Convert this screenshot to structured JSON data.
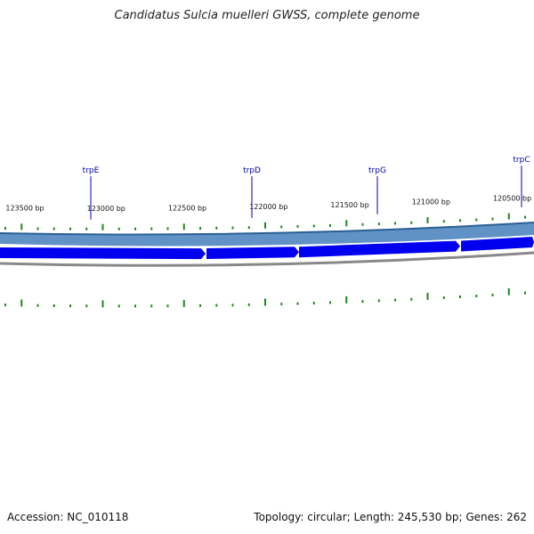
{
  "title": "Candidatus Sulcia muelleri GWSS, complete genome",
  "footer": {
    "accession": "Accession: NC_010118",
    "summary": "Topology: circular; Length: 245,530 bp; Genes: 262"
  },
  "colors": {
    "forward_track": "#4f86c0",
    "gene_arrow": "#0000ee",
    "backbone": "#888888",
    "tick": "#1a8a1a",
    "label": "#0000aa"
  },
  "scale_labels": [
    {
      "bp": 123500,
      "text": "123500 bp"
    },
    {
      "bp": 123000,
      "text": "123000 bp"
    },
    {
      "bp": 122500,
      "text": "122500 bp"
    },
    {
      "bp": 122000,
      "text": "122000 bp"
    },
    {
      "bp": 121500,
      "text": "121500 bp"
    },
    {
      "bp": 121000,
      "text": "121000 bp"
    },
    {
      "bp": 120500,
      "text": "120500 bp"
    }
  ],
  "genes": [
    {
      "name": "trpE"
    },
    {
      "name": "trpD"
    },
    {
      "name": "trpG"
    },
    {
      "name": "trpC"
    }
  ]
}
